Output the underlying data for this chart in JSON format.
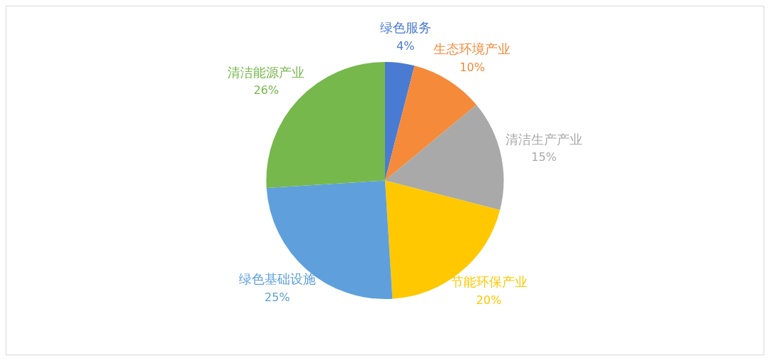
{
  "chart_data": {
    "type": "pie",
    "categories": [
      "绿色服务",
      "生态环境产业",
      "清洁生产产业",
      "节能环保产业",
      "绿色基础设施",
      "清洁能源产业"
    ],
    "values": [
      4,
      10,
      15,
      20,
      25,
      26
    ],
    "colors": [
      "#4a7bd2",
      "#f58a3a",
      "#a9a9a9",
      "#ffc800",
      "#5fa0dc",
      "#76b84c"
    ],
    "value_labels": [
      "4%",
      "10%",
      "15%",
      "20%",
      "25%",
      "26%"
    ]
  }
}
